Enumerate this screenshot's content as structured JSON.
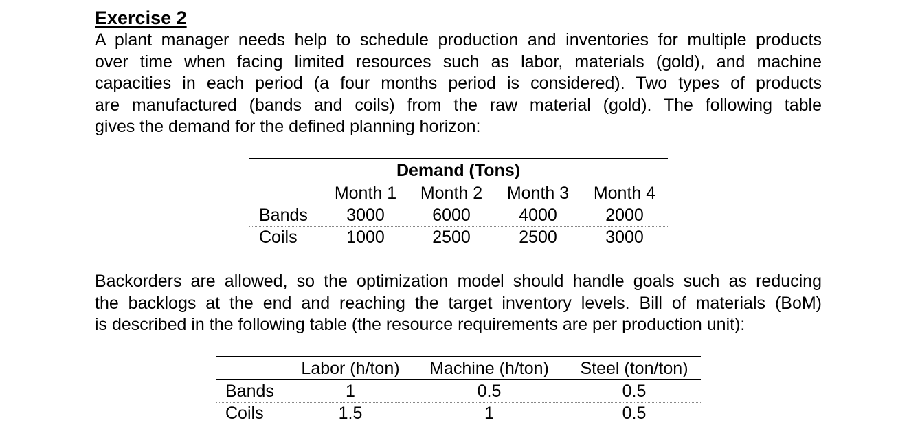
{
  "exercise": {
    "title": "Exercise 2",
    "intro_lines": [
      "A plant manager needs help to schedule production and inventories for multiple products",
      "over time when facing limited resources such as labor, materials (gold), and machine",
      "capacities in each period (a four months period is considered). Two types of products",
      "are manufactured (bands and coils) from the raw material (gold). The following table",
      "gives the demand for the defined planning horizon:"
    ],
    "demand_table": {
      "caption": "Demand (Tons)",
      "columns": [
        "Month 1",
        "Month 2",
        "Month 3",
        "Month 4"
      ],
      "rows": [
        {
          "label": "Bands",
          "values": [
            "3000",
            "6000",
            "4000",
            "2000"
          ]
        },
        {
          "label": "Coils",
          "values": [
            "1000",
            "2500",
            "2500",
            "3000"
          ]
        }
      ]
    },
    "backorder_lines": [
      "Backorders are allowed, so the optimization model should handle goals such as reducing",
      "the backlogs at the end and reaching the target inventory levels. Bill of materials (BoM)",
      "is described in the following table (the resource requirements are per production unit):"
    ],
    "bom_table": {
      "columns": [
        "Labor (h/ton)",
        "Machine (h/ton)",
        "Steel (ton/ton)"
      ],
      "rows": [
        {
          "label": "Bands",
          "values": [
            "1",
            "0.5",
            "0.5"
          ]
        },
        {
          "label": "Coils",
          "values": [
            "1.5",
            "1",
            "0.5"
          ]
        }
      ]
    }
  }
}
